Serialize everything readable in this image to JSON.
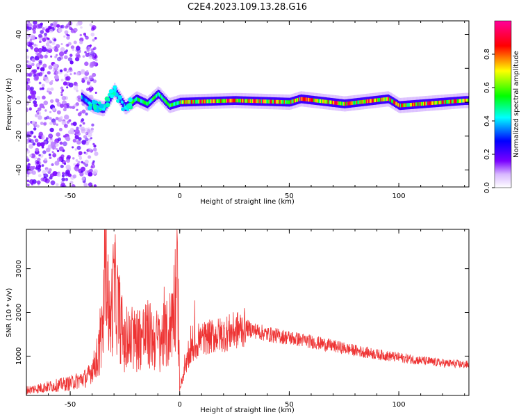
{
  "title": "C2E4.2023.109.13.28.G16",
  "chart_data": [
    {
      "type": "heatmap",
      "xlabel": "Height of straight line (km)",
      "ylabel": "Frequency (Hz)",
      "xlim": [
        -70,
        132
      ],
      "ylim": [
        -50,
        48
      ],
      "xticks": [
        -50,
        0,
        50,
        100
      ],
      "yticks": [
        -40,
        -20,
        0,
        20,
        40
      ],
      "colorbar": {
        "label": "Normalized spectral amplitude",
        "range": [
          0,
          1
        ],
        "ticks": [
          "0.0",
          "0.2",
          "0.4",
          "0.6",
          "0.8"
        ],
        "colormap": [
          "#ffffff",
          "#7a00ff",
          "#0000ff",
          "#00ffff",
          "#00ff00",
          "#ffff00",
          "#ff0000",
          "#ff0099"
        ]
      },
      "ridge": [
        {
          "x": -45,
          "y": 3
        },
        {
          "x": -40,
          "y": -2
        },
        {
          "x": -35,
          "y": -4
        },
        {
          "x": -30,
          "y": 7
        },
        {
          "x": -25,
          "y": -3
        },
        {
          "x": -20,
          "y": 2
        },
        {
          "x": -15,
          "y": -1
        },
        {
          "x": -10,
          "y": 5
        },
        {
          "x": -5,
          "y": -2
        },
        {
          "x": 0,
          "y": 0
        },
        {
          "x": 25,
          "y": 1
        },
        {
          "x": 50,
          "y": 0
        },
        {
          "x": 55,
          "y": 2
        },
        {
          "x": 75,
          "y": -1
        },
        {
          "x": 95,
          "y": 2
        },
        {
          "x": 100,
          "y": -2
        },
        {
          "x": 130,
          "y": 1
        }
      ]
    },
    {
      "type": "line",
      "xlabel": "Height of straight line (km)",
      "ylabel": "SNR (10 * v/v)",
      "xlim": [
        -70,
        132
      ],
      "ylim": [
        100,
        3900
      ],
      "xticks": [
        -50,
        0,
        50,
        100
      ],
      "yticks": [
        1000,
        2000,
        3000
      ],
      "series": [
        {
          "color": "#ee3333",
          "values": [
            {
              "x": -70,
              "y": 220
            },
            {
              "x": -60,
              "y": 300
            },
            {
              "x": -50,
              "y": 380
            },
            {
              "x": -42,
              "y": 520
            },
            {
              "x": -38,
              "y": 900
            },
            {
              "x": -35,
              "y": 1500
            },
            {
              "x": -34,
              "y": 3900
            },
            {
              "x": -32,
              "y": 1600
            },
            {
              "x": -30,
              "y": 2600
            },
            {
              "x": -25,
              "y": 1200
            },
            {
              "x": -20,
              "y": 1400
            },
            {
              "x": -15,
              "y": 1500
            },
            {
              "x": -10,
              "y": 1350
            },
            {
              "x": -5,
              "y": 1500
            },
            {
              "x": -1,
              "y": 2700
            },
            {
              "x": 0,
              "y": 300
            },
            {
              "x": 5,
              "y": 1100
            },
            {
              "x": 10,
              "y": 1400
            },
            {
              "x": 20,
              "y": 1500
            },
            {
              "x": 30,
              "y": 1650
            },
            {
              "x": 40,
              "y": 1500
            },
            {
              "x": 50,
              "y": 1420
            },
            {
              "x": 60,
              "y": 1330
            },
            {
              "x": 70,
              "y": 1230
            },
            {
              "x": 80,
              "y": 1130
            },
            {
              "x": 90,
              "y": 1040
            },
            {
              "x": 100,
              "y": 970
            },
            {
              "x": 110,
              "y": 900
            },
            {
              "x": 120,
              "y": 840
            },
            {
              "x": 132,
              "y": 800
            }
          ]
        }
      ]
    }
  ]
}
